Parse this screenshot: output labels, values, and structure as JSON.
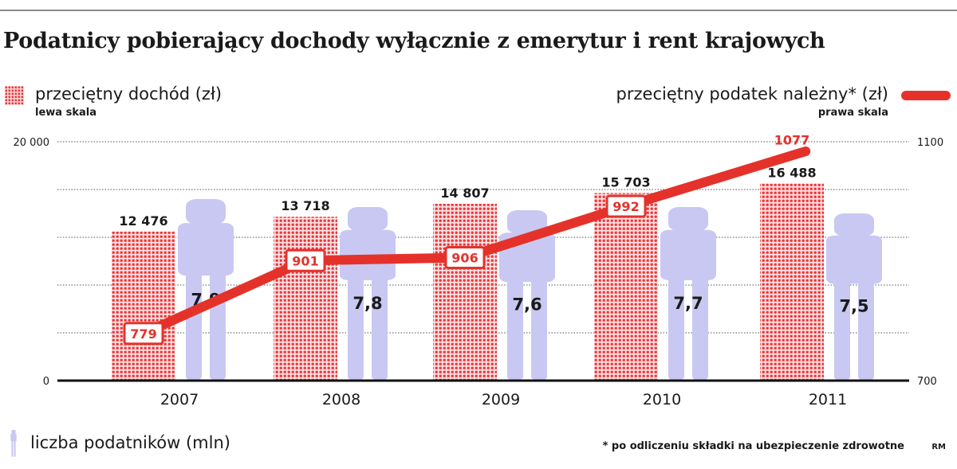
{
  "title": "Podatnicy pobierający dochody wyłącznie z emerytur i rent krajowych",
  "legend": {
    "bars_label": "przeciętny dochód (zł)",
    "bars_scale": "lewa skala",
    "line_label": "przeciętny podatek należny* (zł)",
    "line_scale": "prawa skala",
    "people_label": "liczba podatników (mln)"
  },
  "footnote": "* po odliczeniu składki na ubezpieczenie zdrowotne",
  "credit": "RM",
  "colors": {
    "bars": "#e8363b",
    "line": "#e4322b",
    "people": "#c9c8f3",
    "grid": "#555555"
  },
  "chart_data": {
    "type": "bar",
    "categories": [
      "2007",
      "2008",
      "2009",
      "2010",
      "2011"
    ],
    "series": [
      {
        "name": "przeciętny dochód (zł)",
        "axis": "left",
        "values": [
          12476,
          13718,
          14807,
          15703,
          16488
        ],
        "labels": [
          "12 476",
          "13 718",
          "14 807",
          "15 703",
          "16 488"
        ]
      },
      {
        "name": "przeciętny podatek należny* (zł)",
        "type": "line",
        "axis": "right",
        "values": [
          779,
          901,
          906,
          992,
          1077
        ],
        "labels": [
          "779",
          "901",
          "906",
          "992",
          "1077"
        ]
      },
      {
        "name": "liczba podatników (mln)",
        "type": "pictogram",
        "values": [
          7.9,
          7.8,
          7.6,
          7.7,
          7.5
        ],
        "labels": [
          "7,9",
          "7,8",
          "7,6",
          "7,7",
          "7,5"
        ]
      }
    ],
    "left_axis": {
      "range": [
        0,
        20000
      ],
      "tick_labels": [
        "0",
        "20 000"
      ]
    },
    "right_axis": {
      "range": [
        700,
        1100
      ],
      "tick_labels": [
        "700",
        "1100"
      ]
    },
    "grid": true
  }
}
